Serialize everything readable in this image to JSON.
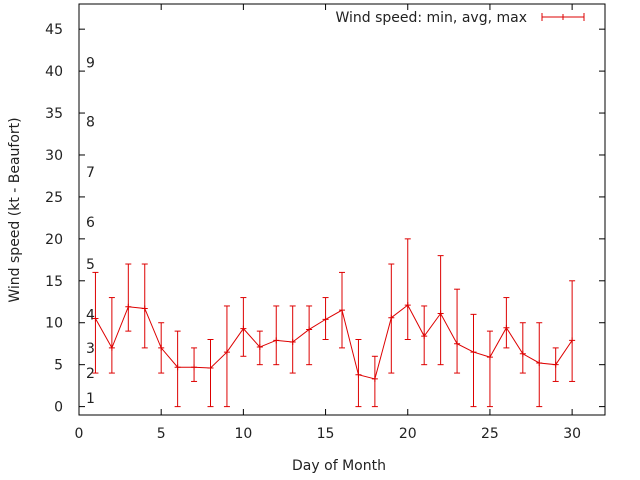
{
  "chart_data": {
    "type": "line",
    "xlabel": "Day of Month",
    "ylabel": "Wind speed (kt - Beaufort)",
    "xlim": [
      0,
      32
    ],
    "ylim": [
      -1,
      48
    ],
    "xticks": [
      0,
      5,
      10,
      15,
      20,
      25,
      30
    ],
    "yticks": [
      0,
      5,
      10,
      15,
      20,
      25,
      30,
      35,
      40,
      45
    ],
    "legend_position": "top-right",
    "grid": false,
    "color": "#dd0000",
    "beaufort_scale": [
      {
        "label": "1",
        "value": 1
      },
      {
        "label": "2",
        "value": 4
      },
      {
        "label": "3",
        "value": 7
      },
      {
        "label": "4",
        "value": 11
      },
      {
        "label": "5",
        "value": 17
      },
      {
        "label": "6",
        "value": 22
      },
      {
        "label": "7",
        "value": 28
      },
      {
        "label": "8",
        "value": 34
      },
      {
        "label": "9",
        "value": 41
      }
    ],
    "series": [
      {
        "name": "Wind speed: min, avg, max",
        "x": [
          1,
          2,
          3,
          4,
          5,
          6,
          7,
          8,
          9,
          10,
          11,
          12,
          13,
          14,
          15,
          16,
          17,
          18,
          19,
          20,
          21,
          22,
          23,
          24,
          25,
          26,
          27,
          28,
          29,
          30
        ],
        "avg": [
          10.5,
          7,
          11.9,
          11.7,
          7,
          4.7,
          4.7,
          4.6,
          6.5,
          9.3,
          7.1,
          7.9,
          7.7,
          9.2,
          10.4,
          11.5,
          3.8,
          3.3,
          10.6,
          12.1,
          8.4,
          11.1,
          7.5,
          6.5,
          5.9,
          9.4,
          6.3,
          5.2,
          5,
          7.9
        ],
        "min": [
          4,
          4,
          9,
          7,
          4,
          0,
          3,
          0,
          0,
          6,
          5,
          5,
          4,
          5,
          8,
          7,
          0,
          0,
          4,
          8,
          5,
          5,
          4,
          0,
          0,
          7,
          4,
          0,
          3,
          3
        ],
        "max": [
          16,
          13,
          17,
          17,
          10,
          9,
          7,
          8,
          12,
          13,
          9,
          12,
          12,
          12,
          13,
          16,
          8,
          6,
          17,
          20,
          12,
          18,
          14,
          11,
          9,
          13,
          10,
          10,
          7,
          15
        ]
      }
    ]
  }
}
